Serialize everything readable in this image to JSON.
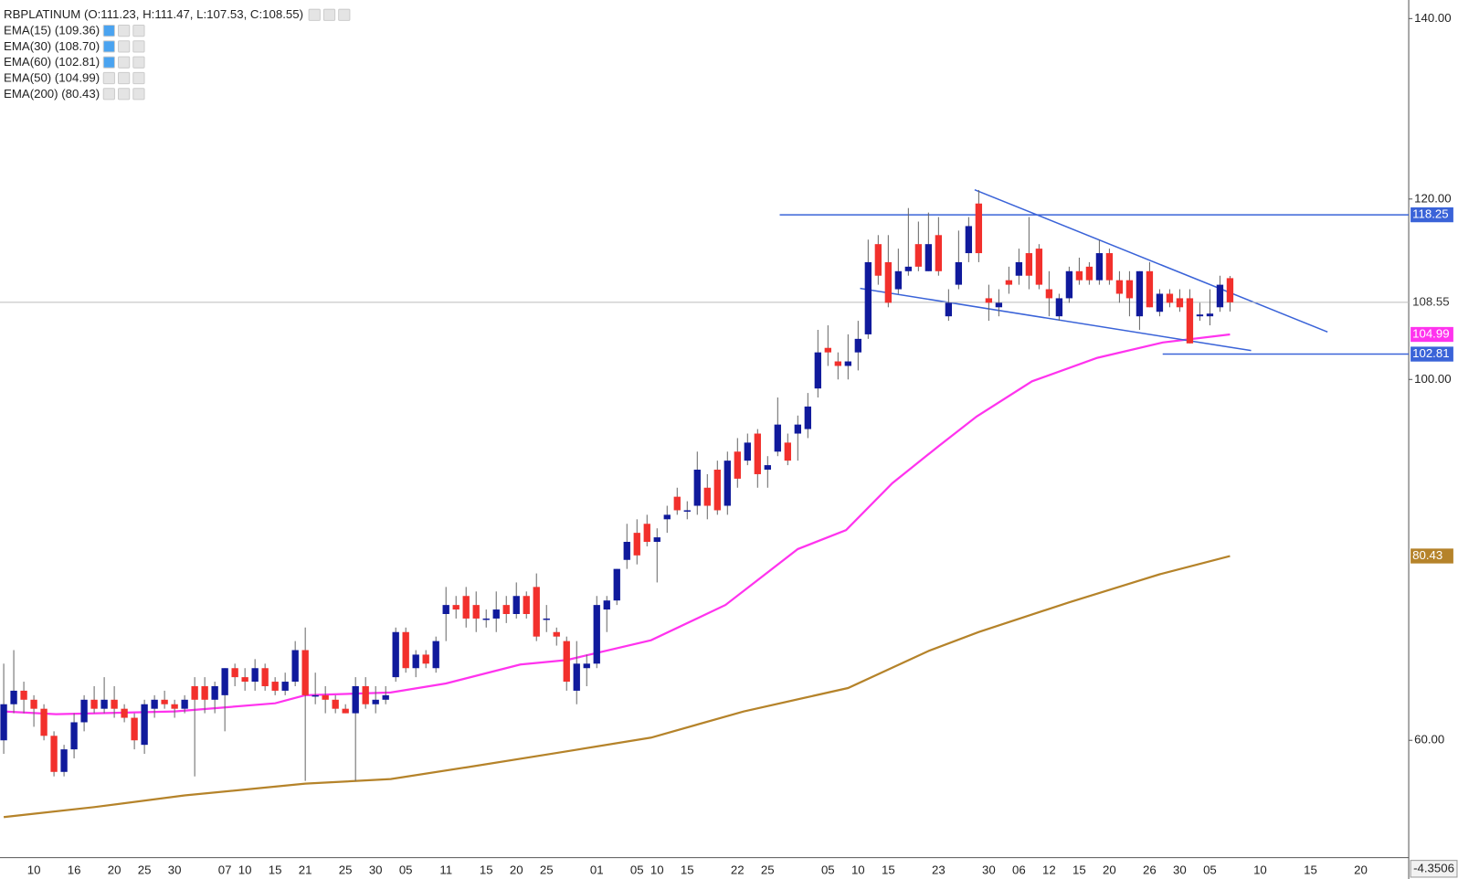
{
  "chart_data": {
    "type": "candlestick",
    "title": "RBPLATINUM (O:111.23, H:111.47, L:107.53, C:108.55)",
    "indicators": [
      {
        "name": "EMA(15)",
        "label": "(109.36)",
        "active": true
      },
      {
        "name": "EMA(30)",
        "label": "(108.70)",
        "active": true
      },
      {
        "name": "EMA(60)",
        "label": "(102.81)",
        "active": true
      },
      {
        "name": "EMA(50)",
        "label": "(104.99)",
        "active": false
      },
      {
        "name": "EMA(200)",
        "label": "(80.43)",
        "active": false
      }
    ],
    "bull_color": "#101a9c",
    "bear_color": "#f2302c",
    "ylim": [
      47,
      142.06
    ],
    "yticks": [
      {
        "value": 140,
        "label": "140.00"
      },
      {
        "value": 120,
        "label": "120.00"
      },
      {
        "value": 100,
        "label": "100.00"
      },
      {
        "value": 60,
        "label": "60.00"
      }
    ],
    "corner_label": "-4.3506",
    "categories": [
      null,
      null,
      null,
      "10",
      null,
      null,
      null,
      "16",
      null,
      null,
      null,
      "20",
      null,
      null,
      "25",
      null,
      null,
      "30",
      null,
      null,
      null,
      null,
      "07",
      null,
      "10",
      null,
      null,
      "15",
      null,
      null,
      "21",
      null,
      null,
      null,
      "25",
      null,
      null,
      "30",
      null,
      null,
      "05",
      null,
      null,
      null,
      "11",
      null,
      null,
      null,
      "15",
      null,
      null,
      "20",
      null,
      null,
      "25",
      null,
      null,
      null,
      null,
      "01",
      null,
      null,
      null,
      "05",
      null,
      "10",
      null,
      null,
      "15",
      null,
      null,
      null,
      null,
      "22",
      null,
      null,
      "25",
      null,
      null,
      null,
      null,
      null,
      "05",
      null,
      null,
      "10",
      null,
      null,
      "15",
      null,
      null,
      null,
      null,
      "23",
      null,
      null,
      null,
      null,
      "30",
      null,
      null,
      "06",
      null,
      null,
      "12",
      null,
      null,
      "15",
      null,
      null,
      "20",
      null,
      null,
      null,
      "26",
      null,
      null,
      "30",
      null,
      null,
      "05",
      null,
      null,
      null,
      null,
      "10",
      null,
      null,
      null,
      null,
      "15",
      null,
      null,
      null,
      null,
      "20"
    ],
    "ohlc": [
      [
        60,
        68.5,
        58.5,
        64
      ],
      [
        64,
        70,
        63,
        65.5
      ],
      [
        65.5,
        66.5,
        63,
        64.5
      ],
      [
        64.5,
        65,
        61.5,
        63.5
      ],
      [
        63.5,
        64,
        60,
        60.5
      ],
      [
        60.5,
        61,
        56,
        56.5
      ],
      [
        56.5,
        59.5,
        56,
        59
      ],
      [
        59,
        63,
        58,
        62
      ],
      [
        62,
        65,
        61,
        64.5
      ],
      [
        64.5,
        66,
        63,
        63.5
      ],
      [
        63.5,
        67,
        63,
        64.5
      ],
      [
        64.5,
        66,
        62.5,
        63.5
      ],
      [
        63.5,
        64,
        62,
        62.5
      ],
      [
        62.5,
        63,
        59,
        60
      ],
      [
        59.5,
        64.5,
        58.5,
        64
      ],
      [
        63.5,
        65,
        62.5,
        64.5
      ],
      [
        64.5,
        65.5,
        63.5,
        64
      ],
      [
        64,
        64.5,
        62.5,
        63.5
      ],
      [
        63.5,
        65,
        63,
        64.5
      ],
      [
        66,
        67,
        56,
        64.5
      ],
      [
        66,
        67,
        63,
        64.5
      ],
      [
        64.5,
        66.5,
        63,
        66
      ],
      [
        65,
        68,
        61,
        68
      ],
      [
        68,
        68.5,
        66,
        67
      ],
      [
        67,
        68,
        65.5,
        66.5
      ],
      [
        66.5,
        69,
        65.5,
        68
      ],
      [
        68,
        68.5,
        65.5,
        66
      ],
      [
        66.5,
        67,
        65,
        65.5
      ],
      [
        65.5,
        67.5,
        65,
        66.5
      ],
      [
        66.5,
        71,
        66,
        70
      ],
      [
        70,
        72.5,
        55.5,
        65
      ],
      [
        65,
        67.5,
        64,
        65
      ],
      [
        65,
        66,
        63,
        64.5
      ],
      [
        64.5,
        65,
        63,
        63.5
      ],
      [
        63.5,
        64,
        63,
        63
      ],
      [
        63,
        67,
        55.5,
        66
      ],
      [
        66,
        67,
        63.5,
        64
      ],
      [
        64,
        66,
        63,
        64.5
      ],
      [
        64.5,
        66,
        64,
        65
      ],
      [
        67,
        72.5,
        66.5,
        72
      ],
      [
        72,
        72.5,
        67.5,
        68
      ],
      [
        68,
        70,
        67,
        69.5
      ],
      [
        69.5,
        70,
        68,
        68.5
      ],
      [
        68,
        71.5,
        67.5,
        71
      ],
      [
        74,
        77,
        71,
        75
      ],
      [
        75,
        76,
        73.5,
        74.5
      ],
      [
        76,
        77,
        72.5,
        73.5
      ],
      [
        75,
        76.5,
        72,
        73.5
      ],
      [
        73.5,
        74.5,
        72.5,
        73.5
      ],
      [
        73.5,
        76.5,
        72,
        74.5
      ],
      [
        75,
        76,
        73,
        74
      ],
      [
        74,
        77.5,
        73.5,
        76
      ],
      [
        76,
        76.5,
        73.5,
        74
      ],
      [
        77,
        78.5,
        71,
        71.5
      ],
      [
        73.5,
        75,
        72,
        73.5
      ],
      [
        72,
        72.5,
        70.5,
        71.5
      ],
      [
        71,
        71.5,
        65.5,
        66.5
      ],
      [
        65.5,
        71,
        64,
        68.5
      ],
      [
        68,
        69.5,
        66,
        68.5
      ],
      [
        68.5,
        76,
        68,
        75
      ],
      [
        74.5,
        76,
        72,
        75.5
      ],
      [
        75.5,
        79,
        75,
        79
      ],
      [
        80,
        84,
        79,
        82
      ],
      [
        83,
        84.5,
        79.5,
        80.5
      ],
      [
        84,
        85,
        81.5,
        82
      ],
      [
        82,
        83.5,
        77.5,
        82.5
      ],
      [
        84.5,
        86,
        83,
        85
      ],
      [
        87,
        88,
        85,
        85.5
      ],
      [
        85.5,
        86.5,
        84.5,
        85.5
      ],
      [
        86,
        92,
        85,
        90
      ],
      [
        88,
        89.5,
        84.5,
        86
      ],
      [
        90,
        91,
        85,
        85.5
      ],
      [
        86,
        92,
        85,
        91
      ],
      [
        92,
        93.5,
        88,
        89
      ],
      [
        91,
        94,
        90.5,
        93
      ],
      [
        94,
        94.5,
        88,
        89.5
      ],
      [
        90,
        91.5,
        88,
        90.5
      ],
      [
        92,
        98,
        91.5,
        95
      ],
      [
        93,
        94,
        90.5,
        91
      ],
      [
        94,
        96,
        91,
        95
      ],
      [
        94.5,
        98.5,
        93.5,
        97
      ],
      [
        99,
        105.5,
        98,
        103
      ],
      [
        103.5,
        106,
        101.5,
        103
      ],
      [
        102,
        103,
        100,
        101.5
      ],
      [
        101.5,
        105,
        100,
        102
      ],
      [
        103,
        106.5,
        101,
        104.5
      ],
      [
        105,
        115.5,
        104.5,
        113
      ],
      [
        115,
        116,
        110.5,
        111.5
      ],
      [
        113,
        116,
        108,
        108.5
      ],
      [
        110,
        114.5,
        109.5,
        112
      ],
      [
        112,
        119,
        111.5,
        112.5
      ],
      [
        115,
        117.5,
        112,
        112.5
      ],
      [
        112,
        118.5,
        112,
        115
      ],
      [
        116,
        118,
        111.5,
        112
      ],
      [
        107,
        110,
        106.5,
        108.5
      ],
      [
        110.5,
        116.5,
        110,
        113
      ],
      [
        114,
        118,
        113,
        117
      ],
      [
        119.5,
        121,
        113,
        114
      ],
      [
        109,
        110.5,
        106.5,
        108.5
      ],
      [
        108,
        110,
        107,
        108.5
      ],
      [
        111,
        112.5,
        109.5,
        110.5
      ],
      [
        111.5,
        114.5,
        110.5,
        113
      ],
      [
        114,
        118,
        110,
        111.5
      ],
      [
        114.5,
        115,
        110,
        110.5
      ],
      [
        110,
        112,
        107,
        109
      ],
      [
        107,
        109.5,
        106.5,
        109
      ],
      [
        109,
        112.5,
        108.5,
        112
      ],
      [
        112,
        113.5,
        110.5,
        111
      ],
      [
        112.5,
        113,
        110.5,
        111
      ],
      [
        111,
        115.5,
        110.5,
        114
      ],
      [
        114,
        114.5,
        110.5,
        111
      ],
      [
        111,
        112,
        108.5,
        109.5
      ],
      [
        111,
        112,
        107,
        109
      ],
      [
        107,
        112,
        105.5,
        112
      ],
      [
        112,
        113,
        108,
        108
      ],
      [
        107.5,
        110,
        107,
        109.5
      ],
      [
        109.5,
        110,
        108,
        108.5
      ],
      [
        109,
        110,
        107.5,
        108
      ],
      [
        109,
        110,
        104,
        104
      ],
      [
        107,
        108.5,
        106.5,
        107.2
      ],
      [
        107,
        110,
        106,
        107.3
      ],
      [
        108,
        111.5,
        107.5,
        110.5
      ],
      [
        111.23,
        111.47,
        107.53,
        108.55
      ],
      null,
      null,
      null,
      null,
      null,
      null,
      null,
      null,
      null,
      null,
      null,
      null,
      null
    ],
    "price_line_color": "#bbbbbb",
    "lines": [
      {
        "color": "#ff33ee",
        "x": [
          0,
          5.2,
          17,
          27,
          30,
          38.5,
          44,
          51.4,
          56,
          64.4,
          71.8,
          79,
          83.8,
          88.4,
          93,
          96.8,
          102.3,
          108.8,
          115.3,
          122
        ],
        "values": [
          63.2,
          62.9,
          63.2,
          64.1,
          65,
          65.3,
          66.3,
          68.4,
          68.9,
          71.1,
          75,
          81.2,
          83.3,
          88.5,
          92.6,
          95.9,
          99.8,
          102.4,
          104.1,
          104.99
        ]
      },
      {
        "color": "#b5832a",
        "x": [
          0,
          9,
          18,
          30,
          38.5,
          46,
          55,
          64.4,
          73.6,
          84,
          92,
          97,
          106,
          115,
          122
        ],
        "values": [
          51.5,
          52.6,
          53.9,
          55.2,
          55.7,
          57,
          58.6,
          60.3,
          63.2,
          65.8,
          69.9,
          72,
          75.3,
          78.4,
          80.43
        ]
      }
    ],
    "trendlines": [
      {
        "color": "#3a63d8",
        "x": [
          96.6,
          131.7
        ],
        "values": [
          121.03,
          105.26
        ]
      },
      {
        "color": "#3a63d8",
        "x": [
          85.2,
          124.1
        ],
        "values": [
          110.1,
          103.2
        ]
      }
    ],
    "levels": [
      {
        "value": 118.25,
        "from": 77.2,
        "color": "#3a63d8"
      },
      {
        "value": 102.81,
        "from": 115.3,
        "color": "#3a63d8"
      }
    ]
  }
}
